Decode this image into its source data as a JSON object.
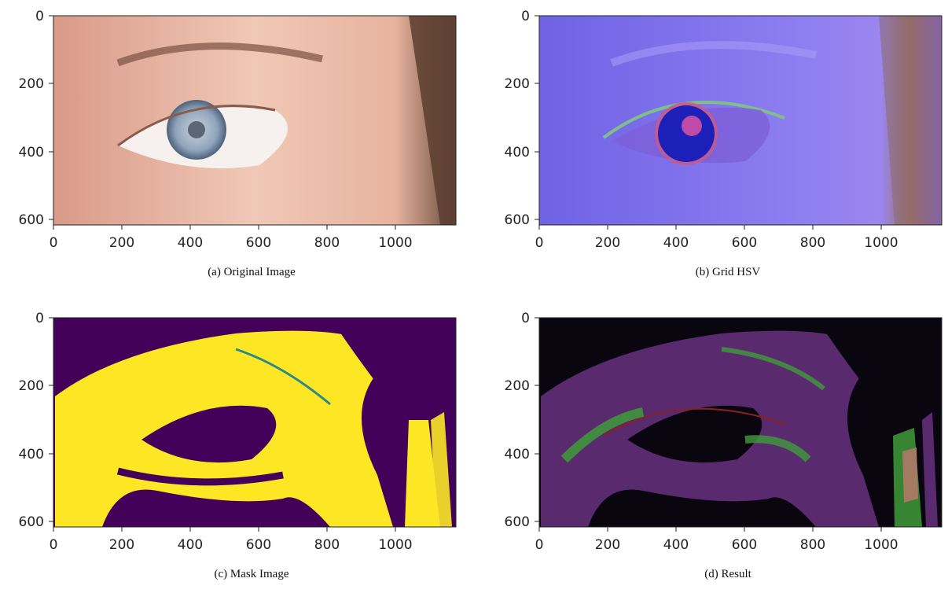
{
  "figure": {
    "panels": [
      {
        "id": "a",
        "caption": "(a) Original Image",
        "image_kind": "original",
        "x_ticks": [
          "0",
          "200",
          "400",
          "600",
          "800",
          "1000"
        ],
        "y_ticks": [
          "0",
          "200",
          "400",
          "600"
        ]
      },
      {
        "id": "b",
        "caption": "(b) Grid HSV",
        "image_kind": "hsv",
        "x_ticks": [
          "0",
          "200",
          "400",
          "600",
          "800",
          "1000"
        ],
        "y_ticks": [
          "0",
          "200",
          "400",
          "600"
        ]
      },
      {
        "id": "c",
        "caption": "(c) Mask Image",
        "image_kind": "mask",
        "x_ticks": [
          "0",
          "200",
          "400",
          "600",
          "800",
          "1000"
        ],
        "y_ticks": [
          "0",
          "200",
          "400",
          "600"
        ]
      },
      {
        "id": "d",
        "caption": "(d) Result",
        "image_kind": "result",
        "x_ticks": [
          "0",
          "200",
          "400",
          "600",
          "800",
          "1000"
        ],
        "y_ticks": [
          "0",
          "200",
          "400",
          "600"
        ]
      }
    ],
    "colors": {
      "skin": "#e8b8a4",
      "hsv_bg": "#7a66e6",
      "mask_bg": "#44015a",
      "mask_fg": "#fde725",
      "result_bg": "#0a0610"
    }
  }
}
